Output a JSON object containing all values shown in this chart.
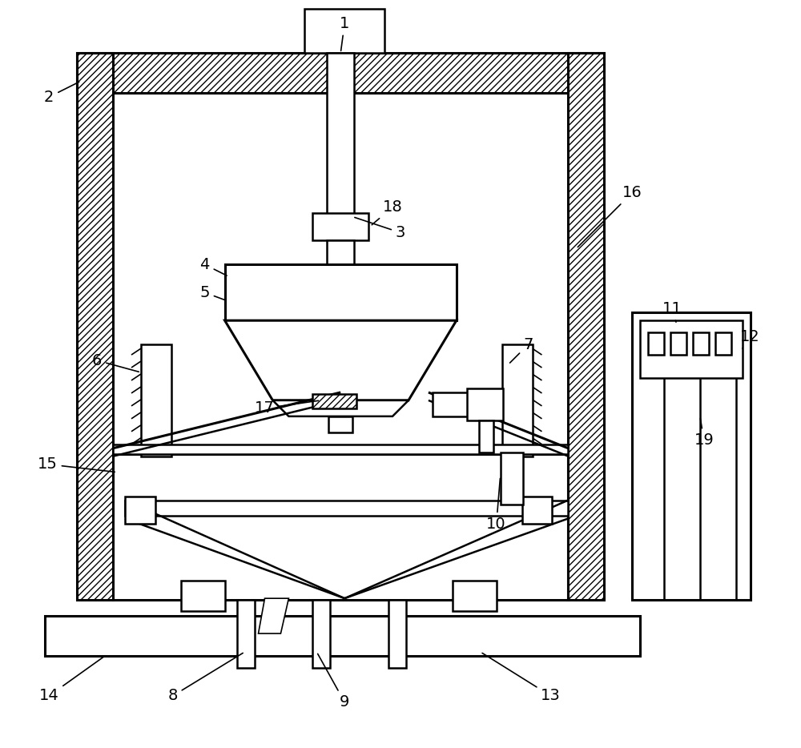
{
  "bg_color": "#ffffff",
  "line_color": "#000000",
  "figsize": [
    10.0,
    9.34
  ],
  "dpi": 100,
  "lw_thin": 1.2,
  "lw_med": 1.8,
  "lw_thick": 2.2,
  "label_fs": 14
}
